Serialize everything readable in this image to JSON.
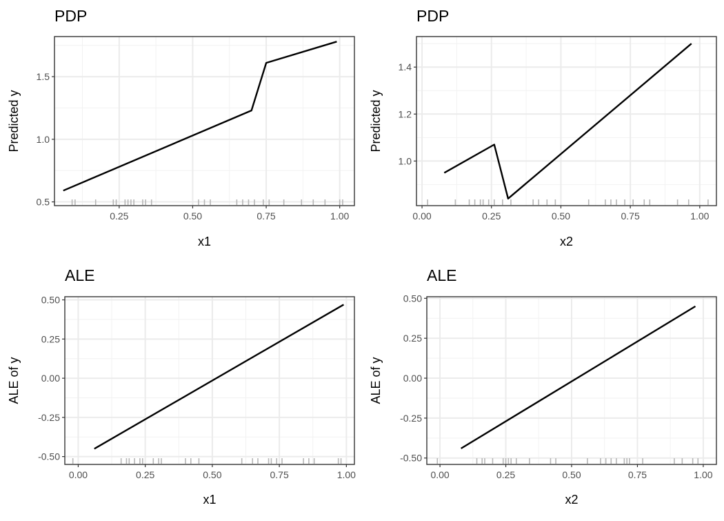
{
  "chart_data": [
    {
      "id": "pdp-x1",
      "type": "line",
      "title": "PDP",
      "xlabel": "x1",
      "ylabel": "Predicted y",
      "xlim": [
        0.03,
        1.05
      ],
      "ylim": [
        0.47,
        1.82
      ],
      "xticks": [
        0.25,
        0.5,
        0.75,
        1.0
      ],
      "xtick_labels": [
        "0.25",
        "0.50",
        "0.75",
        "1.00"
      ],
      "yticks": [
        0.5,
        1.0,
        1.5
      ],
      "ytick_labels": [
        "0.5",
        "1.0",
        "1.5"
      ],
      "series": [
        {
          "x": [
            0.06,
            0.7,
            0.75,
            0.99
          ],
          "y": [
            0.59,
            1.23,
            1.61,
            1.78
          ]
        }
      ],
      "rug": [
        0.09,
        0.1,
        0.17,
        0.23,
        0.24,
        0.27,
        0.28,
        0.29,
        0.3,
        0.33,
        0.34,
        0.36,
        0.52,
        0.54,
        0.56,
        0.65,
        0.67,
        0.69,
        0.71,
        0.74,
        0.76,
        0.81,
        0.87,
        0.91,
        0.95,
        1.0,
        1.01
      ],
      "grid": true,
      "legend": "none"
    },
    {
      "id": "pdp-x2",
      "type": "line",
      "title": "PDP",
      "xlabel": "x2",
      "ylabel": "Predicted y",
      "xlim": [
        -0.02,
        1.06
      ],
      "ylim": [
        0.81,
        1.53
      ],
      "xticks": [
        0.0,
        0.25,
        0.5,
        0.75,
        1.0
      ],
      "xtick_labels": [
        "0.00",
        "0.25",
        "0.50",
        "0.75",
        "1.00"
      ],
      "yticks": [
        1.0,
        1.2,
        1.4
      ],
      "ytick_labels": [
        "1.0",
        "1.2",
        "1.4"
      ],
      "series": [
        {
          "x": [
            0.08,
            0.26,
            0.31,
            0.97
          ],
          "y": [
            0.95,
            1.07,
            0.84,
            1.5
          ]
        }
      ],
      "rug": [
        0.02,
        0.12,
        0.17,
        0.19,
        0.21,
        0.22,
        0.24,
        0.26,
        0.29,
        0.32,
        0.4,
        0.42,
        0.45,
        0.48,
        0.6,
        0.66,
        0.68,
        0.7,
        0.73,
        0.76,
        0.8,
        0.82,
        0.92,
        0.96,
        1.03
      ],
      "grid": true,
      "legend": "none"
    },
    {
      "id": "ale-x1",
      "type": "line",
      "title": "ALE",
      "xlabel": "x1",
      "ylabel": "ALE of y",
      "xlim": [
        -0.05,
        1.03
      ],
      "ylim": [
        -0.55,
        0.52
      ],
      "xticks": [
        0.0,
        0.25,
        0.5,
        0.75,
        1.0
      ],
      "xtick_labels": [
        "0.00",
        "0.25",
        "0.50",
        "0.75",
        "1.00"
      ],
      "yticks": [
        -0.5,
        -0.25,
        0.0,
        0.25,
        0.5
      ],
      "ytick_labels": [
        "-0.50",
        "-0.25",
        "0.00",
        "0.25",
        "0.50"
      ],
      "series": [
        {
          "x": [
            0.06,
            0.99
          ],
          "y": [
            -0.45,
            0.47
          ]
        }
      ],
      "rug": [
        -0.02,
        0.16,
        0.18,
        0.19,
        0.21,
        0.23,
        0.24,
        0.28,
        0.3,
        0.31,
        0.4,
        0.42,
        0.45,
        0.61,
        0.65,
        0.67,
        0.71,
        0.72,
        0.74,
        0.76,
        0.84,
        0.86,
        0.88,
        0.97,
        0.98
      ],
      "grid": true,
      "legend": "none"
    },
    {
      "id": "ale-x2",
      "type": "line",
      "title": "ALE",
      "xlabel": "x2",
      "ylabel": "ALE of y",
      "xlim": [
        -0.05,
        1.05
      ],
      "ylim": [
        -0.54,
        0.51
      ],
      "xticks": [
        0.0,
        0.25,
        0.5,
        0.75,
        1.0
      ],
      "xtick_labels": [
        "0.00",
        "0.25",
        "0.50",
        "0.75",
        "1.00"
      ],
      "yticks": [
        -0.5,
        -0.25,
        0.0,
        0.25,
        0.5
      ],
      "ytick_labels": [
        "-0.50",
        "-0.25",
        "0.00",
        "0.25",
        "0.50"
      ],
      "series": [
        {
          "x": [
            0.08,
            0.97
          ],
          "y": [
            -0.44,
            0.45
          ]
        }
      ],
      "rug": [
        -0.01,
        0.14,
        0.16,
        0.17,
        0.2,
        0.24,
        0.25,
        0.26,
        0.27,
        0.29,
        0.34,
        0.42,
        0.44,
        0.56,
        0.61,
        0.63,
        0.65,
        0.67,
        0.7,
        0.71,
        0.72,
        0.77,
        0.89,
        0.92,
        0.96,
        0.98
      ],
      "grid": true,
      "legend": "none"
    }
  ]
}
